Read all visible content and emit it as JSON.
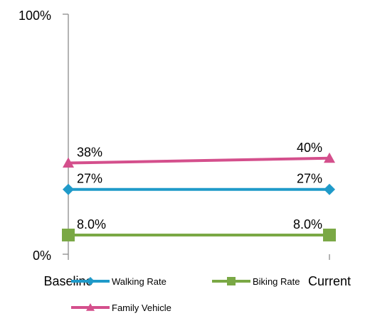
{
  "chart_data": {
    "type": "line",
    "categories": [
      "Baseline",
      "Current"
    ],
    "y_tick_labels": [
      "0%",
      "100%"
    ],
    "ylim": [
      0,
      100
    ],
    "legend_position": "bottom",
    "series": [
      {
        "name": "Walking Rate",
        "values": [
          27,
          27
        ],
        "labels": [
          "27%",
          "27%"
        ],
        "color": "#1f9ac9",
        "marker": "diamond"
      },
      {
        "name": "Biking Rate",
        "values": [
          8,
          8
        ],
        "labels": [
          "8.0%",
          "8.0%"
        ],
        "color": "#7aa845",
        "marker": "square"
      },
      {
        "name": "Family Vehicle",
        "values": [
          38,
          40
        ],
        "labels": [
          "38%",
          "40%"
        ],
        "color": "#d44f8c",
        "marker": "triangle"
      }
    ]
  }
}
